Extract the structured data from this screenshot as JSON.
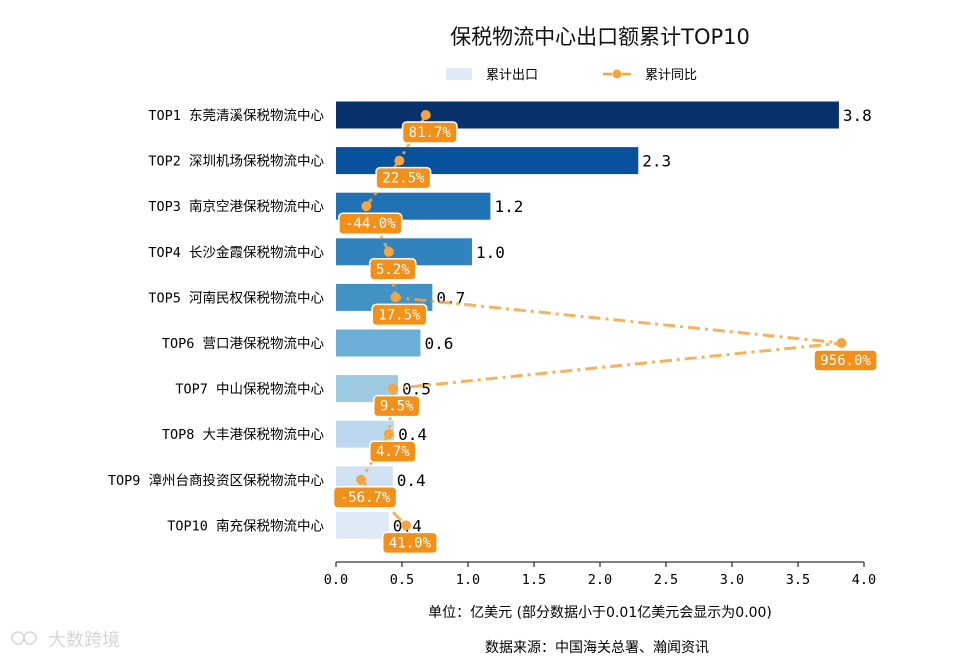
{
  "chart_data": {
    "type": "bar+line",
    "orientation": "horizontal",
    "title": "保税物流中心出口额累计TOP10",
    "categories": [
      "TOP1 东莞清溪保税物流中心",
      "TOP2 深圳机场保税物流中心",
      "TOP3 南京空港保税物流中心",
      "TOP4 长沙金霞保税物流中心",
      "TOP5 河南民权保税物流中心",
      "TOP6 营口港保税物流中心",
      "TOP7 中山保税物流中心",
      "TOP8 大丰港保税物流中心",
      "TOP9 漳州台商投资区保税物流中心",
      "TOP10 南充保税物流中心"
    ],
    "series": [
      {
        "name": "累计出口",
        "kind": "bar",
        "values": [
          3.81,
          2.29,
          1.17,
          1.03,
          0.73,
          0.64,
          0.47,
          0.44,
          0.43,
          0.4
        ],
        "labels": [
          "3.8",
          "2.3",
          "1.2",
          "1.0",
          "0.7",
          "0.6",
          "0.5",
          "0.4",
          "0.4",
          "0.4"
        ],
        "colors": [
          "#08306b",
          "#08519c",
          "#2171b5",
          "#3182bd",
          "#4292c6",
          "#6baed6",
          "#9ecae1",
          "#bdd7ee",
          "#cfe1f2",
          "#deebf7"
        ]
      },
      {
        "name": "累计同比",
        "kind": "line",
        "x_positions_on_value_axis": [
          0.68,
          0.48,
          0.23,
          0.4,
          0.45,
          3.83,
          0.43,
          0.4,
          0.19,
          0.53
        ],
        "labels": [
          "81.7%",
          "22.5%",
          "-44.0%",
          "5.2%",
          "17.5%",
          "956.0%",
          "9.5%",
          "4.7%",
          "-56.7%",
          "41.0%"
        ],
        "color": "#f5a540",
        "label_bg": "#f39019"
      }
    ],
    "xlim": [
      0,
      4.0
    ],
    "xticks": [
      "0.0",
      "0.5",
      "1.0",
      "1.5",
      "2.0",
      "2.5",
      "3.0",
      "3.5",
      "4.0"
    ],
    "xlabel": "单位：亿美元  (部分数据小于0.01亿美元会显示为0.00)",
    "source": "数据来源：中国海关总署、瀚闻资讯",
    "legend_position": "top"
  },
  "watermark": "大数跨境"
}
